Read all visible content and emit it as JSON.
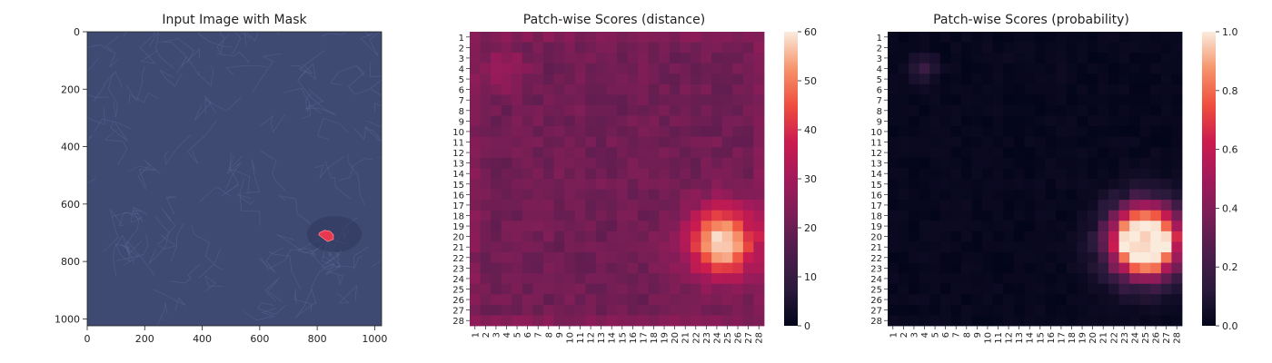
{
  "chart_data": [
    {
      "type": "image",
      "title": "Input Image with Mask",
      "x_ticks": [
        0,
        200,
        400,
        600,
        800,
        1000
      ],
      "y_ticks": [
        0,
        200,
        400,
        600,
        800,
        1000
      ],
      "xlim": [
        0,
        1024
      ],
      "ylim": [
        1024,
        0
      ],
      "image_description_colors": {
        "background": "#3f4a73",
        "mask": "#e8384f"
      },
      "mask_region": {
        "cx": 830,
        "cy": 715,
        "r": 28
      }
    },
    {
      "type": "heatmap",
      "title": "Patch-wise Scores (distance)",
      "rows": [
        "1",
        "2",
        "3",
        "4",
        "5",
        "6",
        "7",
        "8",
        "9",
        "10",
        "11",
        "12",
        "13",
        "14",
        "15",
        "16",
        "17",
        "18",
        "19",
        "20",
        "21",
        "22",
        "23",
        "24",
        "25",
        "26",
        "27",
        "28"
      ],
      "cols": [
        "1",
        "2",
        "3",
        "4",
        "5",
        "6",
        "7",
        "8",
        "9",
        "10",
        "11",
        "12",
        "13",
        "14",
        "15",
        "16",
        "17",
        "18",
        "19",
        "20",
        "21",
        "22",
        "23",
        "24",
        "25",
        "26",
        "27",
        "28"
      ],
      "colorbar_ticks": [
        0,
        10,
        20,
        30,
        40,
        50,
        60
      ],
      "vmin": 0,
      "vmax": 60,
      "colormap": "rocket",
      "base_level": 21,
      "hotspot": {
        "row": 20.5,
        "col": 24.5,
        "peak": 60,
        "sigma": 2.3
      },
      "secondary": {
        "row": 4,
        "col": 4,
        "peak": 9,
        "sigma": 1.3
      }
    },
    {
      "type": "heatmap",
      "title": "Patch-wise Scores (probability)",
      "rows": [
        "1",
        "2",
        "3",
        "4",
        "5",
        "6",
        "7",
        "8",
        "9",
        "10",
        "11",
        "12",
        "13",
        "14",
        "15",
        "16",
        "17",
        "18",
        "19",
        "20",
        "21",
        "22",
        "23",
        "24",
        "25",
        "26",
        "27",
        "28"
      ],
      "cols": [
        "1",
        "2",
        "3",
        "4",
        "5",
        "6",
        "7",
        "8",
        "9",
        "10",
        "11",
        "12",
        "13",
        "14",
        "15",
        "16",
        "17",
        "18",
        "19",
        "20",
        "21",
        "22",
        "23",
        "24",
        "25",
        "26",
        "27",
        "28"
      ],
      "colorbar_ticks": [
        0.0,
        0.2,
        0.4,
        0.6,
        0.8,
        1.0
      ],
      "vmin": 0.0,
      "vmax": 1.0,
      "colormap": "rocket",
      "hotspot": {
        "row": 20.5,
        "col": 25,
        "peak": 1.0,
        "sigma": 2.2
      },
      "secondary": {
        "row": 4,
        "col": 4,
        "peak": 0.18,
        "sigma": 0.8
      }
    }
  ],
  "labels": {
    "p1_title": "Input Image with Mask",
    "p2_title": "Patch-wise Scores (distance)",
    "p3_title": "Patch-wise Scores (probability)"
  }
}
